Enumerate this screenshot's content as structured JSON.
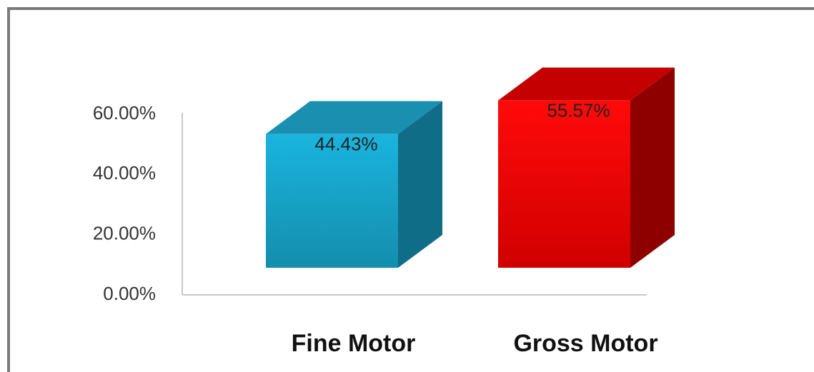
{
  "chart_data": {
    "type": "bar",
    "categories": [
      "Fine Motor",
      "Gross Motor"
    ],
    "values": [
      44.43,
      55.57
    ],
    "value_labels": [
      "44.43%",
      "55.57%"
    ],
    "colors": [
      "#1ba8cf",
      "#e80000"
    ],
    "ylim": [
      0,
      60
    ],
    "yticks": [
      {
        "value": 0,
        "label": "0.00%"
      },
      {
        "value": 20,
        "label": "20.00%"
      },
      {
        "value": 40,
        "label": "40.00%"
      },
      {
        "value": 60,
        "label": "60.00%"
      }
    ],
    "grid": false
  }
}
